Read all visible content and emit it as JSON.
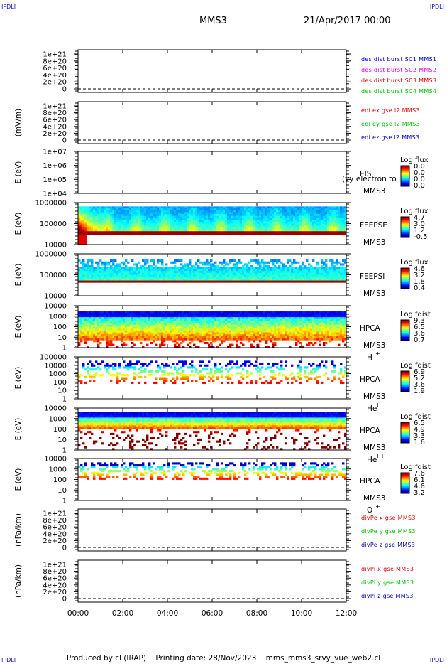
{
  "header": {
    "spacecraft": "MMS3",
    "date_time": "21/Apr/2017 00:00",
    "corner_left_top": "IPDLI",
    "corner_right_top": "IPDLI",
    "corner_left_bottom": "IPDLI",
    "corner_right_bottom": "IPDLI"
  },
  "footer": {
    "produced_by": "Produced by cl (IRAP)",
    "printing_date": "Printing date: 28/Nov/2023",
    "script": "mms_mms3_srvy_vue_web2.cl"
  },
  "colors": {
    "frame": "#000000",
    "red": "#e00000",
    "magenta": "#e000e0",
    "green": "#00c000",
    "blue": "#0000c0"
  },
  "chart_data": {
    "type": "multi-panel",
    "x_axis": {
      "ticks": [
        "00:00",
        "02:00",
        "04:00",
        "06:00",
        "08:00",
        "10:00",
        "12:00"
      ],
      "range": [
        "00:00",
        "12:00"
      ]
    },
    "panels": [
      {
        "kind": "line",
        "ylabel": "",
        "ticks": [
          "1e+21",
          "8e+20",
          "6e+20",
          "4e+20",
          "2e+20",
          "0"
        ],
        "legend": [
          {
            "text": "des dist burst SC1 MMS1",
            "color": "#0000c0"
          },
          {
            "text": "des dist burst SC2 MMS2",
            "color": "#e000e0"
          },
          {
            "text": "des dist burst SC3 MMS3",
            "color": "#e00000"
          },
          {
            "text": "des dist burst SC4 MMS4",
            "color": "#00c000"
          }
        ]
      },
      {
        "kind": "line",
        "ylabel": "(mV/m)",
        "ticks": [
          "1e+21",
          "8e+20",
          "6e+20",
          "4e+20",
          "2e+20",
          "0"
        ],
        "legend": [
          {
            "text": "edi ex gse l2 MMS3",
            "color": "#e00000"
          },
          {
            "text": "edi ey gse l2 MMS3",
            "color": "#00c000"
          },
          {
            "text": "edi ez gse l2 MMS3",
            "color": "#0000c0"
          }
        ]
      },
      {
        "kind": "spectrogram",
        "ylabel": "E (eV)",
        "ticks": [
          "1e+07",
          "1e+06",
          "1e+05",
          "1e+04"
        ],
        "instrument": [
          "EIS",
          "MMS3"
        ],
        "overlay_text": "(vy electron to",
        "colorbar_title": "Log flux",
        "colorbar_ticks": [
          "0.0",
          "0.0",
          "0.0",
          "0.0"
        ],
        "profile": "empty"
      },
      {
        "kind": "spectrogram",
        "ylabel": "E (eV)",
        "ticks": [
          "1000000",
          "100000",
          "10000"
        ],
        "instrument": [
          "FEEPSE",
          "MMS3"
        ],
        "colorbar_title": "Log flux",
        "colorbar_ticks": [
          "4.7",
          "3.0",
          "1.2",
          "-0.5"
        ],
        "profile": "feepse"
      },
      {
        "kind": "spectrogram",
        "ylabel": "E (eV)",
        "ticks": [
          "1000000",
          "100000",
          "10000"
        ],
        "instrument": [
          "FEEPSI",
          "MMS3"
        ],
        "colorbar_title": "Log flux",
        "colorbar_ticks": [
          "4.6",
          "3.2",
          "1.8",
          "0.4"
        ],
        "profile": "feepsi"
      },
      {
        "kind": "spectrogram",
        "ylabel": "E (eV)",
        "ticks": [
          "10000",
          "1000",
          "100",
          "10",
          "1"
        ],
        "instrument": [
          "HPCA",
          "MMS3"
        ],
        "species": {
          "base": "H",
          "sup": "+"
        },
        "colorbar_title": "Log fdist",
        "colorbar_ticks": [
          "9.3",
          "6.5",
          "3.6",
          "0.7"
        ],
        "profile": "hplus"
      },
      {
        "kind": "spectrogram",
        "ylabel": "E (eV)",
        "ticks": [
          "100000",
          "10000",
          "1000",
          "100",
          "10",
          "1"
        ],
        "instrument": [
          "HPCA",
          "MMS3"
        ],
        "species": {
          "base": "He",
          "sup": "+"
        },
        "colorbar_title": "Log fdist",
        "colorbar_ticks": [
          "6.9",
          "5.2",
          "3.6",
          "1.9"
        ],
        "profile": "heplus"
      },
      {
        "kind": "spectrogram",
        "ylabel": "E (eV)",
        "ticks": [
          "10000",
          "1000",
          "100",
          "10",
          "1"
        ],
        "instrument": [
          "HPCA",
          "MMS3"
        ],
        "species": {
          "base": "He",
          "sup": "++"
        },
        "colorbar_title": "Log fdist",
        "colorbar_ticks": [
          "6.5",
          "4.9",
          "3.3",
          "1.6"
        ],
        "profile": "hepp"
      },
      {
        "kind": "spectrogram",
        "ylabel": "E (eV)",
        "ticks": [
          "10000",
          "1000",
          "100",
          "10",
          "1"
        ],
        "instrument": [
          "HPCA",
          "MMS3"
        ],
        "species": {
          "base": "O",
          "sup": "+"
        },
        "colorbar_title": "Log fdist",
        "colorbar_ticks": [
          "7.6",
          "6.1",
          "4.6",
          "3.2"
        ],
        "profile": "oplus"
      },
      {
        "kind": "line",
        "ylabel": "(nPa/km)",
        "ticks": [
          "1e+21",
          "8e+20",
          "6e+20",
          "4e+20",
          "2e+20",
          "0"
        ],
        "legend": [
          {
            "text": "divPe x gse MMS3",
            "color": "#e00000"
          },
          {
            "text": "divPe y gse MMS3",
            "color": "#00c000"
          },
          {
            "text": "divPe z gse MMS3",
            "color": "#0000c0"
          }
        ]
      },
      {
        "kind": "line",
        "ylabel": "(nPa/km)",
        "ticks": [
          "1e+21",
          "8e+20",
          "6e+20",
          "4e+20",
          "2e+20",
          "0"
        ],
        "legend": [
          {
            "text": "divPi x gse MMS3",
            "color": "#e00000"
          },
          {
            "text": "divPi y gse MMS3",
            "color": "#00c000"
          },
          {
            "text": "divPi z gse MMS3",
            "color": "#0000c0"
          }
        ]
      }
    ]
  }
}
